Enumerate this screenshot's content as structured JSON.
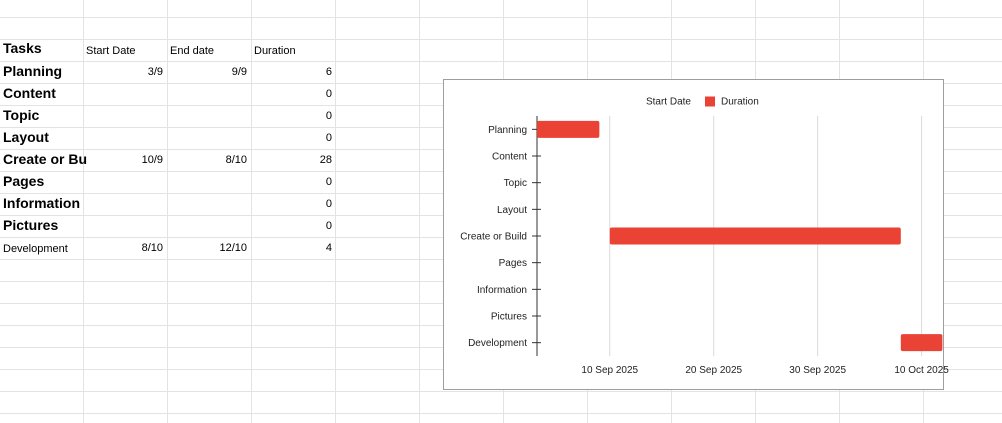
{
  "sheet": {
    "headers": {
      "tasks": "Tasks",
      "start": "Start Date",
      "end": "End date",
      "duration": "Duration"
    },
    "rows": [
      {
        "task": "Planning",
        "start": "3/9",
        "end": "9/9",
        "duration": "6",
        "style": "big"
      },
      {
        "task": "Content",
        "start": "",
        "end": "",
        "duration": "0",
        "style": "big"
      },
      {
        "task": "Topic",
        "start": "",
        "end": "",
        "duration": "0",
        "style": "big"
      },
      {
        "task": "Layout",
        "start": "",
        "end": "",
        "duration": "0",
        "style": "big"
      },
      {
        "task": "Create or Bu",
        "start": "10/9",
        "end": "8/10",
        "duration": "28",
        "style": "big"
      },
      {
        "task": "Pages",
        "start": "",
        "end": "",
        "duration": "0",
        "style": "big"
      },
      {
        "task": "Information",
        "start": "",
        "end": "",
        "duration": "0",
        "style": "big"
      },
      {
        "task": "Pictures",
        "start": "",
        "end": "",
        "duration": "0",
        "style": "big"
      },
      {
        "task": "Development",
        "start": "8/10",
        "end": "12/10",
        "duration": "4",
        "style": "small"
      }
    ]
  },
  "chart_data": {
    "type": "bar",
    "orientation": "horizontal",
    "stacked": true,
    "categories": [
      "Planning",
      "Content",
      "Topic",
      "Layout",
      "Create or Build",
      "Pages",
      "Information",
      "Pictures",
      "Development"
    ],
    "series": [
      {
        "name": "Start Date",
        "color": "none",
        "values": [
          "2025-09-03",
          null,
          null,
          null,
          "2025-09-10",
          null,
          null,
          null,
          "2025-10-08"
        ]
      },
      {
        "name": "Duration",
        "color": "#ea4335",
        "values": [
          6,
          0,
          0,
          0,
          28,
          0,
          0,
          0,
          4
        ]
      }
    ],
    "x_ticks": [
      "10 Sep 2025",
      "20 Sep 2025",
      "30 Sep 2025",
      "10 Oct 2025"
    ],
    "x_tick_dates": [
      "2025-09-10",
      "2025-09-20",
      "2025-09-30",
      "2025-10-10"
    ],
    "xlim": [
      "2025-09-03",
      "2025-10-11"
    ],
    "legend": "top-center",
    "grid": true
  }
}
